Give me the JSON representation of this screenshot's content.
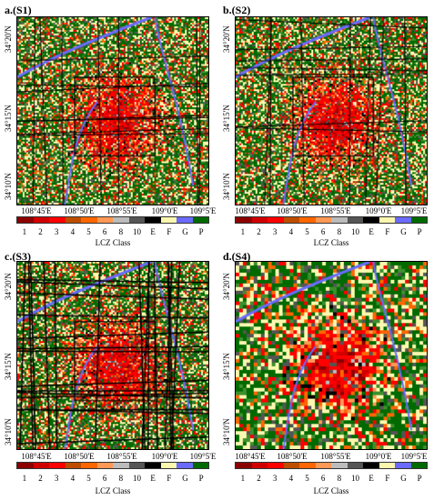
{
  "panels": [
    {
      "title": "a.(S1)"
    },
    {
      "title": "b.(S2)"
    },
    {
      "title": "c.(S3)"
    },
    {
      "title": "d.(S4)"
    }
  ],
  "y_ticks": [
    "34°20'N",
    "34°15'N",
    "34°10'N"
  ],
  "x_ticks": [
    "108°45'E",
    "108°50'E",
    "108°55'E",
    "109°0'E",
    "109°5'E"
  ],
  "legend": {
    "title": "LCZ Class",
    "labels": [
      "1",
      "2",
      "3",
      "4",
      "5",
      "6",
      "8",
      "10",
      "E",
      "F",
      "G",
      "P"
    ],
    "colors": [
      "#8c0000",
      "#d10000",
      "#ff0000",
      "#bf4d00",
      "#ff6600",
      "#ff9955",
      "#bcbcbc",
      "#555555",
      "#000000",
      "#fbf7ae",
      "#6a6aff",
      "#006a00"
    ]
  }
}
